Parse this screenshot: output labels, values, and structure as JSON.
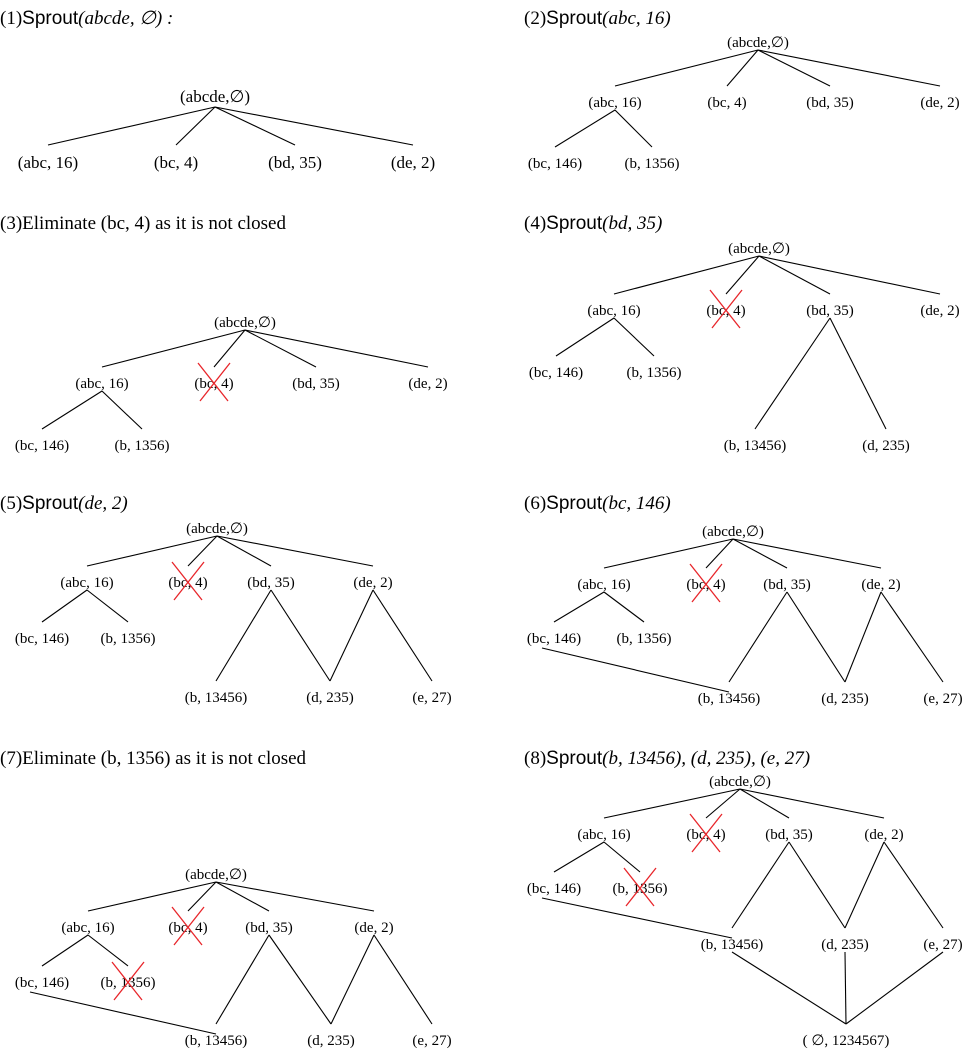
{
  "panels": [
    {
      "title_prefix": "(1)",
      "title_func": "Sprout",
      "title_args": "(abcde, ∅) :",
      "nodes": [
        {
          "id": "root",
          "label": "(abcde,∅)"
        },
        {
          "id": "abc16",
          "label": "(abc, 16)"
        },
        {
          "id": "bc4",
          "label": "(bc, 4)"
        },
        {
          "id": "bd35",
          "label": "(bd, 35)"
        },
        {
          "id": "de2",
          "label": "(de, 2)"
        }
      ]
    },
    {
      "title_prefix": "(2)",
      "title_func": "Sprout",
      "title_args": "(abc, 16)",
      "nodes": [
        {
          "id": "root",
          "label": "(abcde,∅)"
        },
        {
          "id": "abc16",
          "label": "(abc, 16)"
        },
        {
          "id": "bc4",
          "label": "(bc, 4)"
        },
        {
          "id": "bd35",
          "label": "(bd, 35)"
        },
        {
          "id": "de2",
          "label": "(de, 2)"
        },
        {
          "id": "bc146",
          "label": "(bc, 146)"
        },
        {
          "id": "b1356",
          "label": "(b, 1356)"
        }
      ]
    },
    {
      "title_prefix": "(3)",
      "title_text": "Eliminate (bc, 4) as it is not closed",
      "nodes": [
        {
          "id": "root",
          "label": "(abcde,∅)"
        },
        {
          "id": "abc16",
          "label": "(abc, 16)"
        },
        {
          "id": "bc4",
          "label": "(bc, 4)",
          "eliminated": true
        },
        {
          "id": "bd35",
          "label": "(bd, 35)"
        },
        {
          "id": "de2",
          "label": "(de, 2)"
        },
        {
          "id": "bc146",
          "label": "(bc, 146)"
        },
        {
          "id": "b1356",
          "label": "(b, 1356)"
        }
      ]
    },
    {
      "title_prefix": "(4)",
      "title_func": "Sprout",
      "title_args": "(bd, 35)",
      "nodes": [
        {
          "id": "root",
          "label": "(abcde,∅)"
        },
        {
          "id": "abc16",
          "label": "(abc, 16)"
        },
        {
          "id": "bc4",
          "label": "(bc, 4)",
          "eliminated": true
        },
        {
          "id": "bd35",
          "label": "(bd, 35)"
        },
        {
          "id": "de2",
          "label": "(de, 2)"
        },
        {
          "id": "bc146",
          "label": "(bc, 146)"
        },
        {
          "id": "b1356",
          "label": "(b, 1356)"
        },
        {
          "id": "b13456",
          "label": "(b, 13456)"
        },
        {
          "id": "d235",
          "label": "(d, 235)"
        }
      ]
    },
    {
      "title_prefix": "(5)",
      "title_func": "Sprout",
      "title_args": "(de, 2)",
      "nodes": [
        {
          "id": "root",
          "label": "(abcde,∅)"
        },
        {
          "id": "abc16",
          "label": "(abc, 16)"
        },
        {
          "id": "bc4",
          "label": "(bc, 4)",
          "eliminated": true
        },
        {
          "id": "bd35",
          "label": "(bd, 35)"
        },
        {
          "id": "de2",
          "label": "(de, 2)"
        },
        {
          "id": "bc146",
          "label": "(bc, 146)"
        },
        {
          "id": "b1356",
          "label": "(b, 1356)"
        },
        {
          "id": "b13456",
          "label": "(b, 13456)"
        },
        {
          "id": "d235",
          "label": "(d, 235)"
        },
        {
          "id": "e27",
          "label": "(e, 27)"
        }
      ]
    },
    {
      "title_prefix": "(6)",
      "title_func": "Sprout",
      "title_args": "(bc, 146)",
      "nodes": [
        {
          "id": "root",
          "label": "(abcde,∅)"
        },
        {
          "id": "abc16",
          "label": "(abc, 16)"
        },
        {
          "id": "bc4",
          "label": "(bc, 4)",
          "eliminated": true
        },
        {
          "id": "bd35",
          "label": "(bd, 35)"
        },
        {
          "id": "de2",
          "label": "(de, 2)"
        },
        {
          "id": "bc146",
          "label": "(bc, 146)"
        },
        {
          "id": "b1356",
          "label": "(b, 1356)"
        },
        {
          "id": "b13456",
          "label": "(b, 13456)"
        },
        {
          "id": "d235",
          "label": "(d, 235)"
        },
        {
          "id": "e27",
          "label": "(e, 27)"
        }
      ]
    },
    {
      "title_prefix": "(7)",
      "title_text": "Eliminate (b, 1356) as it is not closed",
      "nodes": [
        {
          "id": "root",
          "label": "(abcde,∅)"
        },
        {
          "id": "abc16",
          "label": "(abc, 16)"
        },
        {
          "id": "bc4",
          "label": "(bc, 4)",
          "eliminated": true
        },
        {
          "id": "bd35",
          "label": "(bd, 35)"
        },
        {
          "id": "de2",
          "label": "(de, 2)"
        },
        {
          "id": "bc146",
          "label": "(bc, 146)"
        },
        {
          "id": "b1356",
          "label": "(b, 1356)",
          "eliminated": true
        },
        {
          "id": "b13456",
          "label": "(b, 13456)"
        },
        {
          "id": "d235",
          "label": "(d, 235)"
        },
        {
          "id": "e27",
          "label": "(e, 27)"
        }
      ]
    },
    {
      "title_prefix": "(8)",
      "title_func": "Sprout",
      "title_args": "(b, 13456), (d, 235), (e, 27)",
      "nodes": [
        {
          "id": "root",
          "label": "(abcde,∅)"
        },
        {
          "id": "abc16",
          "label": "(abc, 16)"
        },
        {
          "id": "bc4",
          "label": "(bc, 4)",
          "eliminated": true
        },
        {
          "id": "bd35",
          "label": "(bd, 35)"
        },
        {
          "id": "de2",
          "label": "(de, 2)"
        },
        {
          "id": "bc146",
          "label": "(bc, 146)"
        },
        {
          "id": "b1356",
          "label": "(b, 1356)",
          "eliminated": true
        },
        {
          "id": "b13456",
          "label": "(b, 13456)"
        },
        {
          "id": "d235",
          "label": "(d, 235)"
        },
        {
          "id": "e27",
          "label": "(e, 27)"
        },
        {
          "id": "bottom",
          "label": "( ∅, 1234567)"
        }
      ]
    }
  ]
}
